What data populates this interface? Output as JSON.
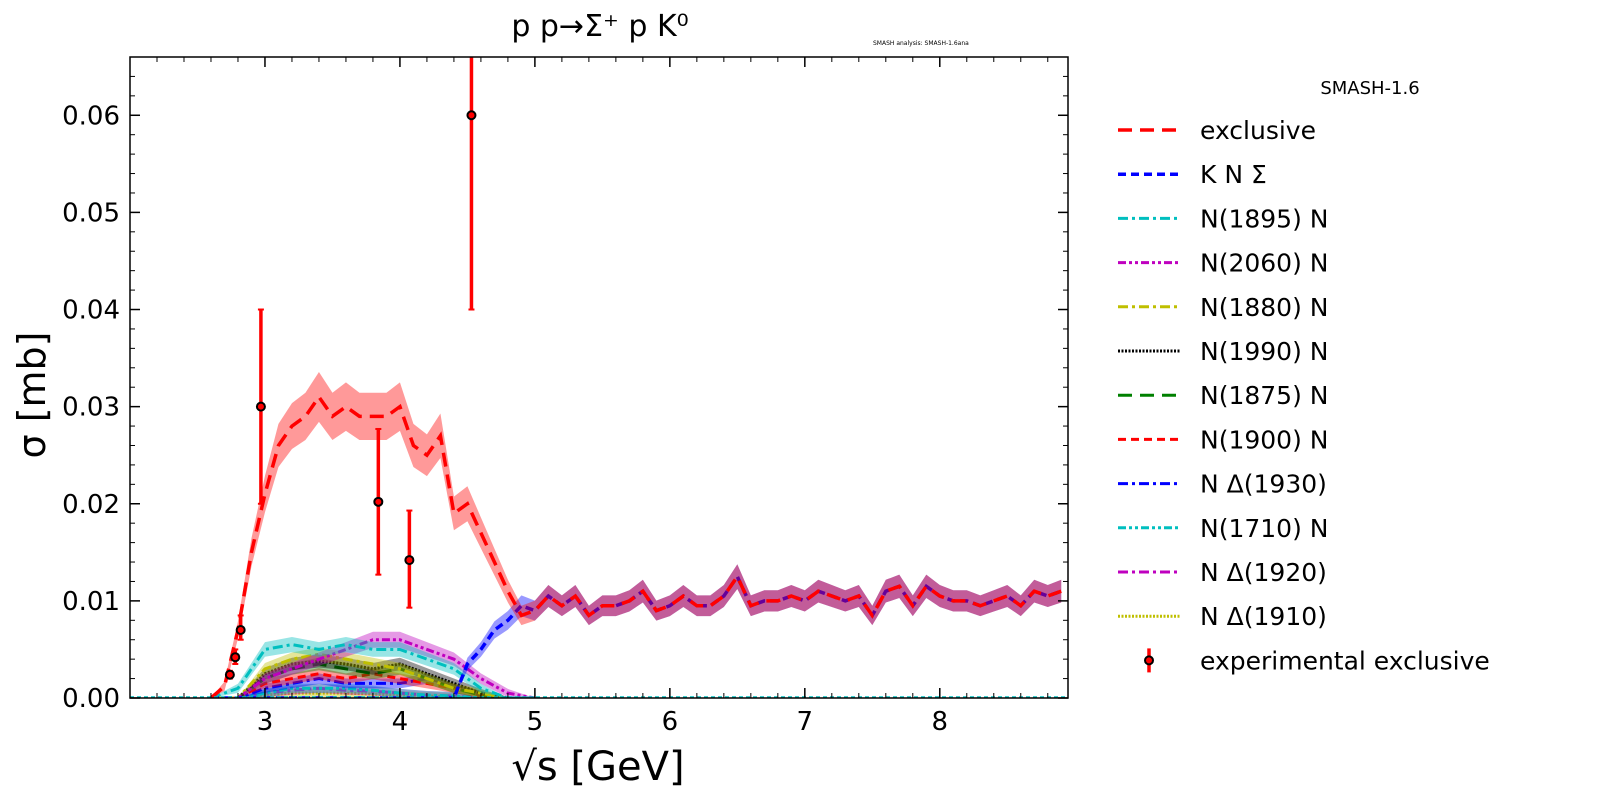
{
  "chart_data": {
    "type": "line",
    "title": "p p→Σ⁺ p K⁰",
    "watermark": "SMASH analysis: SMASH-1.6ana",
    "xlabel": "√s [GeV]",
    "ylabel": "σ [mb]",
    "xlim": [
      2.0,
      8.95
    ],
    "ylim": [
      0.0,
      0.066
    ],
    "xticks": [
      "3",
      "4",
      "5",
      "6",
      "7",
      "8"
    ],
    "xtick_values": [
      3,
      4,
      5,
      6,
      7,
      8
    ],
    "yticks": [
      "0.00",
      "0.01",
      "0.02",
      "0.03",
      "0.04",
      "0.05",
      "0.06"
    ],
    "ytick_values": [
      0,
      0.01,
      0.02,
      0.03,
      0.04,
      0.05,
      0.06
    ],
    "legend_title": "SMASH-1.6",
    "legend_position": "right-outside",
    "main_x": [
      2.6,
      2.7,
      2.8,
      2.9,
      3.0,
      3.1,
      3.2,
      3.3,
      3.4,
      3.5,
      3.6,
      3.7,
      3.8,
      3.9,
      4.0,
      4.1,
      4.2,
      4.3,
      4.4,
      4.5,
      4.6,
      4.7,
      4.8,
      4.9,
      5.0,
      5.1,
      5.2,
      5.3,
      5.4,
      5.5,
      5.6,
      5.7,
      5.8,
      5.9,
      6.0,
      6.1,
      6.2,
      6.3,
      6.4,
      6.5,
      6.6,
      6.7,
      6.8,
      6.9,
      7.0,
      7.1,
      7.2,
      7.3,
      7.4,
      7.5,
      7.6,
      7.7,
      7.8,
      7.9,
      8.0,
      8.1,
      8.2,
      8.3,
      8.4,
      8.5,
      8.6,
      8.7,
      8.8,
      8.9
    ],
    "component_x": [
      2.6,
      2.8,
      3.0,
      3.2,
      3.4,
      3.6,
      3.8,
      4.0,
      4.2,
      4.4,
      4.6,
      4.8,
      5.0
    ],
    "series": [
      {
        "name": "exclusive",
        "color": "#ff0000",
        "dash": "14,8",
        "width": 3.5,
        "grid": "main",
        "values": [
          0,
          0.0012,
          0.007,
          0.015,
          0.021,
          0.026,
          0.028,
          0.029,
          0.031,
          0.029,
          0.03,
          0.029,
          0.029,
          0.029,
          0.03,
          0.026,
          0.025,
          0.027,
          0.019,
          0.02,
          0.017,
          0.014,
          0.011,
          0.0085,
          0.009,
          0.0105,
          0.0095,
          0.0105,
          0.0085,
          0.0095,
          0.0095,
          0.01,
          0.011,
          0.009,
          0.0095,
          0.0105,
          0.0095,
          0.0095,
          0.0105,
          0.0125,
          0.0095,
          0.01,
          0.01,
          0.0105,
          0.01,
          0.011,
          0.0105,
          0.01,
          0.0105,
          0.0085,
          0.011,
          0.0115,
          0.0095,
          0.0115,
          0.0105,
          0.01,
          0.01,
          0.0095,
          0.01,
          0.0105,
          0.0095,
          0.011,
          0.0105,
          0.011
        ]
      },
      {
        "name": "K N Σ",
        "color": "#0000ff",
        "dash": "8,5",
        "width": 3.5,
        "grid": "main",
        "values": [
          0,
          0,
          0,
          0,
          0,
          0,
          0,
          0,
          0,
          0,
          0,
          0,
          0,
          0,
          0,
          0,
          0,
          0,
          0,
          0.0035,
          0.005,
          0.007,
          0.008,
          0.0095,
          0.009,
          0.0105,
          0.0095,
          0.0105,
          0.0085,
          0.0095,
          0.0095,
          0.01,
          0.011,
          0.009,
          0.0095,
          0.0105,
          0.0095,
          0.0095,
          0.0105,
          0.0125,
          0.0095,
          0.01,
          0.01,
          0.0105,
          0.01,
          0.011,
          0.0105,
          0.01,
          0.0105,
          0.0085,
          0.011,
          0.0115,
          0.0095,
          0.0115,
          0.0105,
          0.01,
          0.01,
          0.0095,
          0.01,
          0.0105,
          0.0095,
          0.011,
          0.0105,
          0.011
        ]
      },
      {
        "name": "N(1895) N",
        "color": "#00bfbf",
        "dash": "10,4,3,4",
        "width": 3,
        "grid": "component",
        "values": [
          0,
          0.001,
          0.005,
          0.0055,
          0.005,
          0.0055,
          0.005,
          0.005,
          0.004,
          0.003,
          0.001,
          0,
          0
        ]
      },
      {
        "name": "N(2060) N",
        "color": "#bf00bf",
        "dash": "8,3,3,3,3,3",
        "width": 3,
        "grid": "component",
        "values": [
          0,
          0,
          0.002,
          0.003,
          0.004,
          0.005,
          0.006,
          0.006,
          0.005,
          0.004,
          0.002,
          0.0005,
          0
        ]
      },
      {
        "name": "N(1880) N",
        "color": "#bfbf00",
        "dash": "10,4,3,4",
        "width": 3,
        "grid": "component",
        "values": [
          0,
          0,
          0.003,
          0.004,
          0.0045,
          0.004,
          0.0035,
          0.003,
          0.002,
          0.001,
          0.0005,
          0,
          0
        ]
      },
      {
        "name": "N(1990) N",
        "color": "#000000",
        "dash": "2,1.5",
        "width": 3,
        "grid": "component",
        "values": [
          0,
          0,
          0.0025,
          0.0035,
          0.0038,
          0.0035,
          0.003,
          0.0035,
          0.0025,
          0.0015,
          0.0005,
          0,
          0
        ]
      },
      {
        "name": "N(1875) N",
        "color": "#008000",
        "dash": "14,8",
        "width": 3,
        "grid": "component",
        "values": [
          0,
          0,
          0.002,
          0.003,
          0.0035,
          0.003,
          0.0025,
          0.003,
          0.002,
          0.001,
          0.0003,
          0,
          0
        ]
      },
      {
        "name": "N(1900) N",
        "color": "#ff0000",
        "dash": "8,5",
        "width": 3,
        "grid": "component",
        "values": [
          0,
          0,
          0.0015,
          0.002,
          0.0025,
          0.002,
          0.0025,
          0.002,
          0.0015,
          0.001,
          0.0003,
          0,
          0
        ]
      },
      {
        "name": "N Δ(1930)",
        "color": "#0000ff",
        "dash": "10,4,3,4",
        "width": 3,
        "grid": "component",
        "values": [
          0,
          0,
          0.001,
          0.0015,
          0.002,
          0.0015,
          0.0015,
          0.0015,
          0.002,
          0.001,
          0.0003,
          0,
          0
        ]
      },
      {
        "name": "N(1710) N",
        "color": "#00bfbf",
        "dash": "8,3,3,3,3,3",
        "width": 3,
        "grid": "component",
        "values": [
          0,
          0,
          0.0005,
          0.001,
          0.001,
          0.001,
          0.0008,
          0.0005,
          0.0003,
          0.0002,
          0,
          0,
          0
        ]
      },
      {
        "name": "N Δ(1920)",
        "color": "#bf00bf",
        "dash": "10,4,3,4",
        "width": 3,
        "grid": "component",
        "values": [
          0,
          0,
          0.0005,
          0.0008,
          0.001,
          0.0008,
          0.0007,
          0.0005,
          0.0003,
          0.0002,
          0,
          0,
          0
        ]
      },
      {
        "name": "N Δ(1910)",
        "color": "#bfbf00",
        "dash": "2,1.5",
        "width": 3,
        "grid": "component",
        "values": [
          0,
          0,
          0.0003,
          0.0005,
          0.0005,
          0.0005,
          0.0004,
          0.0003,
          0.0002,
          0.0001,
          0,
          0,
          0
        ]
      }
    ],
    "experimental": {
      "name": "experimental exclusive",
      "color": "#ff0000",
      "x": [
        2.74,
        2.78,
        2.82,
        2.97,
        3.84,
        4.07,
        4.53
      ],
      "y": [
        0.0024,
        0.0042,
        0.007,
        0.03,
        0.0202,
        0.0142,
        0.06
      ],
      "yerr_low": [
        0.002,
        0.0035,
        0.006,
        0.02,
        0.0127,
        0.0093,
        0.04
      ],
      "yerr_high": [
        0.0028,
        0.005,
        0.0085,
        0.04,
        0.0277,
        0.0193,
        0.08
      ]
    }
  }
}
